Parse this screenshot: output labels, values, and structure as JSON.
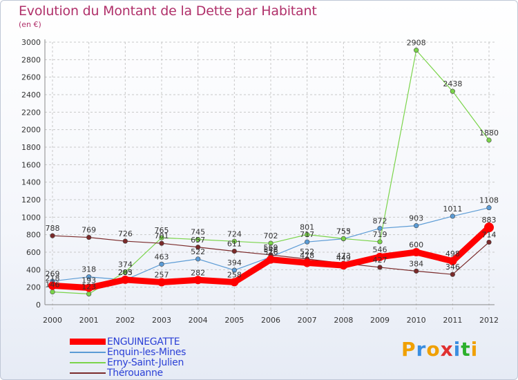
{
  "header": {
    "title": "Evolution du Montant de la Dette par Habitant",
    "unit": "(en €)"
  },
  "logo": {
    "text": "Proxiti",
    "colors": [
      "#f0a000",
      "#3a8ee0",
      "#f0a000",
      "#e03030",
      "#3a8ee0",
      "#2cb02c",
      "#f0a000"
    ]
  },
  "colors": {
    "title": "#b0306a",
    "legend_text": "#2a3fd6",
    "grid": "#c8c8c8",
    "axis_text": "#333333"
  },
  "chart_data": {
    "type": "line",
    "categories": [
      "2000",
      "2001",
      "2002",
      "2003",
      "2004",
      "2005",
      "2006",
      "2007",
      "2008",
      "2009",
      "2010",
      "2011",
      "2012"
    ],
    "ylim": [
      0,
      3000
    ],
    "yticks": [
      0,
      200,
      400,
      600,
      800,
      1000,
      1200,
      1400,
      1600,
      1800,
      2000,
      2200,
      2400,
      2600,
      2800,
      3000
    ],
    "grid": true,
    "legend_position": "bottom-left",
    "series": [
      {
        "name": "ENGUINEGATTE",
        "color": "#ff0000",
        "bold": true,
        "values": [
          218,
          193,
          285,
          257,
          282,
          258,
          516,
          478,
          449,
          546,
          600,
          498,
          883
        ],
        "labels": [
          "218",
          "193",
          "285",
          "257",
          "282",
          "258",
          "516",
          "478",
          "449",
          "546",
          "600",
          "498",
          "883"
        ]
      },
      {
        "name": "Enquin-les-Mines",
        "color": "#5b9bd5",
        "bold": false,
        "values": [
          269,
          318,
          283,
          463,
          522,
          394,
          546,
          717,
          753,
          872,
          903,
          1011,
          1108
        ],
        "labels": [
          "269",
          "318",
          "283",
          "463",
          "522",
          "394",
          "546",
          "717",
          "753",
          "872",
          "903",
          "1011",
          "1108"
        ]
      },
      {
        "name": "Erny-Saint-Julien",
        "color": "#7ad44a",
        "bold": false,
        "values": [
          146,
          123,
          374,
          765,
          745,
          724,
          702,
          801,
          755,
          719,
          2908,
          2438,
          1880
        ],
        "labels": [
          "146",
          "123",
          "374",
          "765",
          "745",
          "724",
          "702",
          "801",
          "755",
          "719",
          "2908",
          "2438",
          "1880"
        ]
      },
      {
        "name": "Thérouanne",
        "color": "#7a2a2a",
        "bold": false,
        "values": [
          788,
          769,
          726,
          701,
          657,
          611,
          569,
          522,
          473,
          427,
          384,
          346,
          714
        ],
        "labels": [
          "788",
          "769",
          "726",
          "701",
          "657",
          "611",
          "569",
          "522",
          "473",
          "427",
          "384",
          "346",
          "714"
        ]
      }
    ]
  }
}
